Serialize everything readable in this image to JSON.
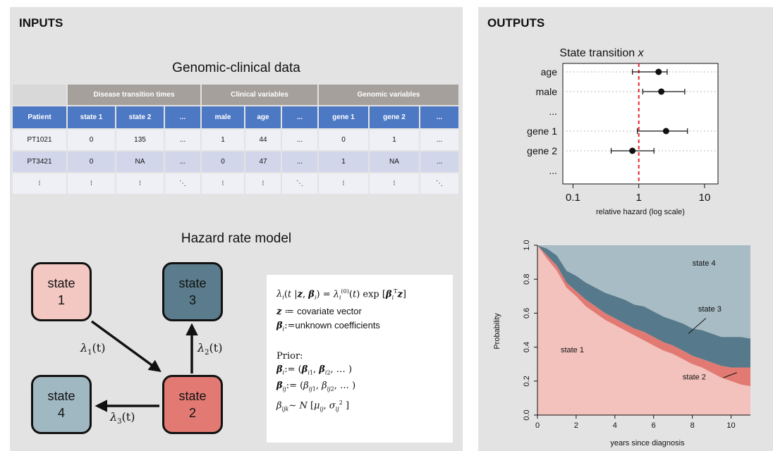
{
  "inputs": {
    "title": "INPUTS",
    "genomic_title": "Genomic-clinical data",
    "table": {
      "groups": [
        "Disease  transition times",
        "Clinical variables",
        "Genomic variables"
      ],
      "headers": [
        "Patient",
        "state 1",
        "state 2",
        "...",
        "male",
        "age",
        "...",
        "gene 1",
        "gene 2",
        "..."
      ],
      "rows": [
        [
          "PT1021",
          "0",
          "135",
          "...",
          "1",
          "44",
          "...",
          "0",
          "1",
          "..."
        ],
        [
          "PT3421",
          "0",
          "NA",
          "...",
          "0",
          "47",
          "...",
          "1",
          "NA",
          "..."
        ],
        [
          "⁝",
          "⁝",
          "⁝",
          "⋱",
          "⁝",
          "⁝",
          "⋱",
          "⁝",
          "⁝",
          "⋱"
        ]
      ]
    },
    "hazard_title": "Hazard rate model",
    "states": [
      {
        "word": "state",
        "num": "1"
      },
      {
        "word": "state",
        "num": "2"
      },
      {
        "word": "state",
        "num": "3"
      },
      {
        "word": "state",
        "num": "4"
      }
    ],
    "rates": [
      "1",
      "2",
      "3"
    ],
    "rate_arg": "(t)",
    "formula": {
      "covariate_text": "covariate vector",
      "coef_text": "unknown coefficients",
      "prior_label": "Prior:"
    }
  },
  "outputs": {
    "title": "OUTPUTS",
    "forest": {
      "title": "State transition",
      "title_var": "x",
      "xlabel": "relative hazard (log scale)"
    },
    "area": {
      "xlabel": "years since diagnosis",
      "ylabel": "Probability"
    }
  },
  "chart_data": [
    {
      "type": "scatter",
      "title": "State transition x",
      "xlabel": "relative hazard (log scale)",
      "ylabel": "",
      "x_scale": "log",
      "xlim": [
        0.07,
        16
      ],
      "xticks": [
        "0.1",
        "1",
        "10"
      ],
      "reference_line": 1,
      "reference_color": "#e8262c",
      "categories": [
        "age",
        "male",
        "...",
        "gene 1",
        "gene 2",
        "..."
      ],
      "estimates": [
        {
          "label": "age",
          "value": 2.0,
          "low": 0.8,
          "high": 2.7
        },
        {
          "label": "male",
          "value": 2.2,
          "low": 1.15,
          "high": 5.0
        },
        {
          "label": "gene 1",
          "value": 2.6,
          "low": 0.95,
          "high": 5.5
        },
        {
          "label": "gene 2",
          "value": 0.8,
          "low": 0.38,
          "high": 1.7
        }
      ]
    },
    {
      "type": "area",
      "title": "",
      "xlabel": "years since diagnosis",
      "ylabel": "Probability",
      "xlim": [
        0,
        11
      ],
      "ylim": [
        0,
        1
      ],
      "xticks": [
        "0",
        "2",
        "4",
        "6",
        "8",
        "10"
      ],
      "yticks": [
        "0.0",
        "0.2",
        "0.4",
        "0.6",
        "0.8",
        "1.0"
      ],
      "x": [
        0,
        0.5,
        1,
        1.5,
        2,
        2.5,
        3,
        3.5,
        4,
        4.5,
        5,
        5.5,
        6,
        6.5,
        7,
        7.5,
        8,
        8.5,
        9,
        9.5,
        10,
        10.5,
        11
      ],
      "series": [
        {
          "name": "state 1",
          "color": "#f3c2bd",
          "values": [
            1.0,
            0.92,
            0.85,
            0.75,
            0.7,
            0.64,
            0.6,
            0.56,
            0.53,
            0.5,
            0.47,
            0.44,
            0.41,
            0.38,
            0.36,
            0.33,
            0.3,
            0.28,
            0.25,
            0.22,
            0.2,
            0.18,
            0.17
          ]
        },
        {
          "name": "state 2",
          "color": "#e27a73",
          "values": [
            0.0,
            0.02,
            0.03,
            0.03,
            0.03,
            0.04,
            0.04,
            0.04,
            0.04,
            0.04,
            0.04,
            0.05,
            0.05,
            0.05,
            0.05,
            0.05,
            0.05,
            0.05,
            0.06,
            0.07,
            0.08,
            0.1,
            0.11
          ]
        },
        {
          "name": "state 3",
          "color": "#567a8b",
          "values": [
            0.0,
            0.04,
            0.06,
            0.07,
            0.09,
            0.1,
            0.11,
            0.12,
            0.13,
            0.14,
            0.14,
            0.15,
            0.15,
            0.15,
            0.15,
            0.16,
            0.16,
            0.17,
            0.17,
            0.17,
            0.18,
            0.18,
            0.17
          ]
        },
        {
          "name": "state 4",
          "color": "#a7bcc5",
          "values": [
            0.0,
            0.02,
            0.06,
            0.15,
            0.18,
            0.22,
            0.25,
            0.28,
            0.3,
            0.32,
            0.35,
            0.36,
            0.39,
            0.42,
            0.44,
            0.46,
            0.49,
            0.5,
            0.52,
            0.54,
            0.54,
            0.54,
            0.55
          ]
        }
      ]
    }
  ]
}
